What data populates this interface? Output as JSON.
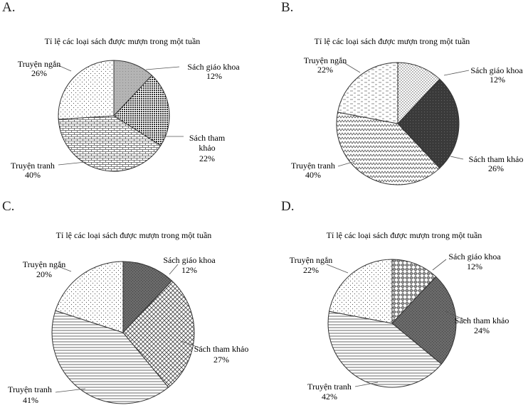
{
  "chart_data": [
    {
      "option": "A.",
      "type": "pie",
      "title": "Tỉ lệ các loại sách được mượn trong một tuần",
      "slices": [
        {
          "label": "Sách giáo khoa",
          "value": 12,
          "value_label": "12%",
          "pattern": "light-gray"
        },
        {
          "label": "Sách tham khảo",
          "value": 22,
          "value_label": "22%",
          "pattern": "dense-dots"
        },
        {
          "label": "Truyện tranh",
          "value": 40,
          "value_label": "40%",
          "pattern": "bricks"
        },
        {
          "label": "Truyện ngắn",
          "value": 26,
          "value_label": "26%",
          "pattern": "sparse-dots"
        }
      ]
    },
    {
      "option": "B.",
      "type": "pie",
      "title": "Tỉ lệ các loại sách được mượn trong một tuần",
      "slices": [
        {
          "label": "Sách giáo khoa",
          "value": 12,
          "value_label": "12%",
          "pattern": "dots"
        },
        {
          "label": "Sách tham khảo",
          "value": 26,
          "value_label": "26%",
          "pattern": "dark"
        },
        {
          "label": "Truyện tranh",
          "value": 40,
          "value_label": "40%",
          "pattern": "zigzag"
        },
        {
          "label": "Truyện ngắn",
          "value": 22,
          "value_label": "22%",
          "pattern": "dashes"
        }
      ]
    },
    {
      "option": "C.",
      "type": "pie",
      "title": "Tỉ lệ các loại sách được mượn trong một tuần",
      "slices": [
        {
          "label": "Sách giáo khoa",
          "value": 12,
          "value_label": "12%",
          "pattern": "dark-gray"
        },
        {
          "label": "Sách tham khảo",
          "value": 27,
          "value_label": "27%",
          "pattern": "crosshatch"
        },
        {
          "label": "Truyện tranh",
          "value": 41,
          "value_label": "41%",
          "pattern": "horizontal-lines"
        },
        {
          "label": "Truyện ngắn",
          "value": 20,
          "value_label": "20%",
          "pattern": "sparse-dots"
        }
      ]
    },
    {
      "option": "D.",
      "type": "pie",
      "title": "Tỉ lệ các loại sách được mượn trong một tuần",
      "slices": [
        {
          "label": "Sách giáo khoa",
          "value": 12,
          "value_label": "12%",
          "pattern": "diamonds"
        },
        {
          "label": "Sách tham khảo",
          "value": 24,
          "value_label": "24%",
          "pattern": "dark-gray"
        },
        {
          "label": "Truyện tranh",
          "value": 42,
          "value_label": "42%",
          "pattern": "horizontal-lines"
        },
        {
          "label": "Truyện ngắn",
          "value": 22,
          "value_label": "22%",
          "pattern": "sparse-dots"
        }
      ]
    }
  ]
}
